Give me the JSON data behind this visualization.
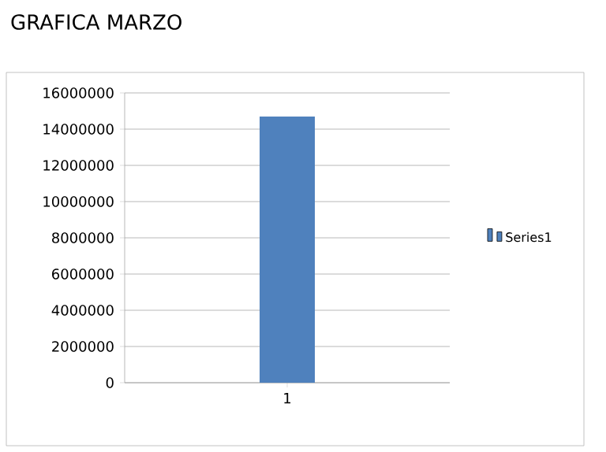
{
  "chart_data": {
    "type": "bar",
    "title": "GRAFICA MARZO",
    "categories": [
      "1"
    ],
    "series": [
      {
        "name": "Series1",
        "color": "#4f81bd",
        "values": [
          14700000
        ]
      }
    ],
    "ylim": [
      0,
      16000000
    ],
    "yticks": [
      0,
      2000000,
      4000000,
      6000000,
      8000000,
      10000000,
      12000000,
      14000000,
      16000000
    ],
    "grid": "y",
    "legend": "right"
  }
}
